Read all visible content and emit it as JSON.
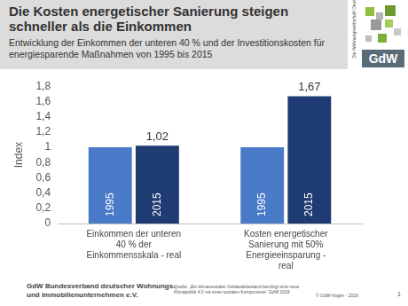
{
  "chart_data": {
    "type": "bar",
    "title": "Die Kosten energetischer Sanierung steigen schneller als die Einkommen",
    "subtitle": "Entwicklung der Einkommen der unteren 40 % und der Investitionskosten für energiesparende Maßnahmen von 1995 bis 2015",
    "y_label": "Index",
    "categories": [
      "Einkommen der unteren 40 % der Einkommensskala - real",
      "Kosten energetischer Sanierung mit 50% Energieeinsparung - real"
    ],
    "series": [
      {
        "name": "1995",
        "color": "#4a7bc8",
        "values": [
          1,
          1
        ]
      },
      {
        "name": "2015",
        "color": "#1f3b73",
        "values": [
          1.02,
          1.67
        ],
        "value_labels": [
          "1,02",
          "1,67"
        ],
        "data_labels": true
      }
    ],
    "ylim": [
      0,
      1.8
    ],
    "yticks": [
      0,
      {
        "value": 0.2,
        "label": "0,2"
      },
      {
        "value": 0.4,
        "label": "0,4"
      },
      {
        "value": 0.6,
        "label": "0,6"
      },
      {
        "value": 0.8,
        "label": "0,8"
      },
      1,
      {
        "value": 1.2,
        "label": "1,2"
      },
      {
        "value": 1.4,
        "label": "1,4"
      },
      {
        "value": 1.6,
        "label": "1,6"
      },
      {
        "value": 1.8,
        "label": "1,8"
      }
    ],
    "grid": false,
    "tick_labels": true
  },
  "logo": {
    "text": "GdW",
    "tagline": "Die Wohnungswirtschaft Deutschland"
  },
  "footer": {
    "organization": "GdW Bundesverband deutscher Wohnungs- und Immobilienunternehmen e.V.",
    "source": "Quelle: „Ein klimaneutraler Gebäudebestand benötigt eine neue Klimapolitik 4.0 mit einer sozialen Komponente“ GdW 2019",
    "copyright": "© GdW-Vogler - 2019",
    "page": 1
  }
}
